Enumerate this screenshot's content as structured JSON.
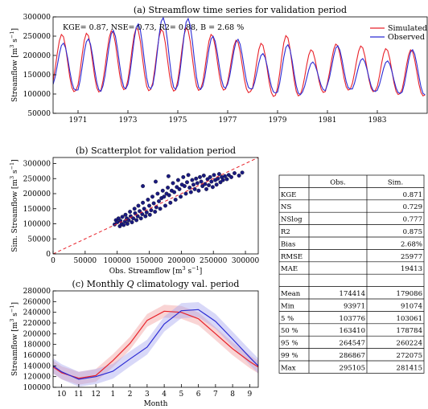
{
  "chart_data": [
    {
      "id": "timeseries",
      "type": "line",
      "title": "(a) Streamflow time series for validation period",
      "xlabel": "",
      "ylabel_base": "Streamflow [m",
      "ylabel_sup1": "3",
      "ylabel_mid": " s",
      "ylabel_sup2": "−1",
      "ylabel_end": "]",
      "xlim": [
        1970.0,
        1985.0
      ],
      "ylim": [
        50000,
        300000
      ],
      "xticks": [
        1971,
        1973,
        1975,
        1977,
        1979,
        1981,
        1983
      ],
      "xtick_labels": [
        "1971",
        "1973",
        "1975",
        "1977",
        "1979",
        "1981",
        "1983"
      ],
      "yticks": [
        50000,
        100000,
        150000,
        200000,
        250000,
        300000
      ],
      "ytick_labels": [
        "50000",
        "100000",
        "150000",
        "200000",
        "250000",
        "300000"
      ],
      "annotation": "KGE= 0.87, NSE= 0.73, R2= 0.88, B = 2.68 %",
      "legend_position": "top-right",
      "series": [
        {
          "name": "Simulated",
          "color": "#e8222a",
          "peaks": [
            255000,
            258000,
            265000,
            272000,
            268000,
            272000,
            255000,
            240000,
            232000,
            252000,
            215000,
            230000,
            225000,
            218000,
            215000
          ],
          "troughs": [
            112000,
            100000,
            110000,
            112000,
            105000,
            110000,
            108000,
            112000,
            95000,
            92000,
            98000,
            110000,
            110000,
            102000,
            95000
          ]
        },
        {
          "name": "Observed",
          "color": "#2b2bd4",
          "peaks": [
            232000,
            243000,
            265000,
            282000,
            298000,
            296000,
            250000,
            242000,
            205000,
            228000,
            183000,
            225000,
            192000,
            186000,
            215000
          ],
          "troughs": [
            118000,
            102000,
            112000,
            115000,
            112000,
            112000,
            112000,
            118000,
            108000,
            97000,
            100000,
            118000,
            108000,
            105000,
            98000
          ]
        }
      ]
    },
    {
      "id": "scatter",
      "type": "scatter",
      "title": "(b) Scatterplot for validation period",
      "xlabel_base": "Obs. Streamflow [m",
      "ylabel_base": "Sim. Streamflow [m",
      "sup1": "3",
      "mid": " s",
      "sup2": "−1",
      "end": "]",
      "xlim": [
        0,
        320000
      ],
      "ylim": [
        0,
        320000
      ],
      "xticks": [
        0,
        50000,
        100000,
        150000,
        200000,
        250000,
        300000
      ],
      "xtick_labels": [
        "0",
        "50000",
        "100000",
        "150000",
        "200000",
        "250000",
        "300000"
      ],
      "yticks": [
        0,
        50000,
        100000,
        150000,
        200000,
        250000,
        300000
      ],
      "ytick_labels": [
        "0",
        "50000",
        "100000",
        "150000",
        "200000",
        "250000",
        "300000"
      ],
      "point_color": "#1a1a80",
      "reference_line_color": "#e8222a",
      "points": [
        [
          96000,
          98000
        ],
        [
          98000,
          112000
        ],
        [
          100000,
          105000
        ],
        [
          102000,
          118000
        ],
        [
          104000,
          92000
        ],
        [
          105000,
          110000
        ],
        [
          107000,
          100000
        ],
        [
          108000,
          123000
        ],
        [
          110000,
          96000
        ],
        [
          112000,
          108000
        ],
        [
          113000,
          130000
        ],
        [
          115000,
          118000
        ],
        [
          116000,
          100000
        ],
        [
          118000,
          112000
        ],
        [
          120000,
          140000
        ],
        [
          121000,
          125000
        ],
        [
          123000,
          105000
        ],
        [
          125000,
          118000
        ],
        [
          127000,
          150000
        ],
        [
          128000,
          135000
        ],
        [
          130000,
          112000
        ],
        [
          132000,
          125000
        ],
        [
          133000,
          160000
        ],
        [
          135000,
          142000
        ],
        [
          137000,
          118000
        ],
        [
          139000,
          132000
        ],
        [
          140000,
          170000
        ],
        [
          142000,
          150000
        ],
        [
          144000,
          125000
        ],
        [
          146000,
          138000
        ],
        [
          148000,
          180000
        ],
        [
          150000,
          160000
        ],
        [
          151000,
          130000
        ],
        [
          153000,
          145000
        ],
        [
          155000,
          190000
        ],
        [
          157000,
          168000
        ],
        [
          159000,
          140000
        ],
        [
          161000,
          155000
        ],
        [
          163000,
          200000
        ],
        [
          165000,
          175000
        ],
        [
          167000,
          150000
        ],
        [
          169000,
          185000
        ],
        [
          171000,
          210000
        ],
        [
          173000,
          190000
        ],
        [
          175000,
          160000
        ],
        [
          177000,
          200000
        ],
        [
          179000,
          220000
        ],
        [
          181000,
          195000
        ],
        [
          183000,
          170000
        ],
        [
          185000,
          210000
        ],
        [
          187000,
          235000
        ],
        [
          189000,
          205000
        ],
        [
          191000,
          180000
        ],
        [
          193000,
          222000
        ],
        [
          195000,
          245000
        ],
        [
          197000,
          215000
        ],
        [
          199000,
          190000
        ],
        [
          201000,
          230000
        ],
        [
          203000,
          255000
        ],
        [
          205000,
          225000
        ],
        [
          207000,
          200000
        ],
        [
          209000,
          238000
        ],
        [
          211000,
          262000
        ],
        [
          213000,
          220000
        ],
        [
          215000,
          205000
        ],
        [
          217000,
          245000
        ],
        [
          219000,
          230000
        ],
        [
          221000,
          215000
        ],
        [
          223000,
          250000
        ],
        [
          225000,
          235000
        ],
        [
          227000,
          210000
        ],
        [
          229000,
          255000
        ],
        [
          231000,
          240000
        ],
        [
          233000,
          225000
        ],
        [
          235000,
          260000
        ],
        [
          237000,
          232000
        ],
        [
          239000,
          215000
        ],
        [
          241000,
          248000
        ],
        [
          243000,
          228000
        ],
        [
          245000,
          255000
        ],
        [
          247000,
          240000
        ],
        [
          249000,
          222000
        ],
        [
          251000,
          262000
        ],
        [
          253000,
          245000
        ],
        [
          255000,
          230000
        ],
        [
          257000,
          250000
        ],
        [
          259000,
          265000
        ],
        [
          261000,
          238000
        ],
        [
          263000,
          255000
        ],
        [
          265000,
          245000
        ],
        [
          268000,
          258000
        ],
        [
          271000,
          248000
        ],
        [
          274000,
          262000
        ],
        [
          278000,
          255000
        ],
        [
          283000,
          268000
        ],
        [
          290000,
          260000
        ],
        [
          295000,
          270000
        ],
        [
          140000,
          225000
        ],
        [
          160000,
          240000
        ],
        [
          180000,
          258000
        ]
      ]
    },
    {
      "id": "climatology",
      "type": "line",
      "title_pre": "(c) Monthly ",
      "title_q": "Q",
      "title_post": " climatology val. period",
      "xlabel": "Month",
      "ylabel_base": "Streamflow [m",
      "sup1": "3",
      "mid": " s",
      "sup2": "−1",
      "end": "]",
      "xlim": [
        0,
        12
      ],
      "ylim": [
        100000,
        280000
      ],
      "xticks": [
        0.5,
        1.5,
        2.5,
        3.5,
        4.5,
        5.5,
        6.5,
        7.5,
        8.5,
        9.5,
        10.5,
        11.5
      ],
      "xtick_labels": [
        "10",
        "11",
        "12",
        "1",
        "2",
        "3",
        "4",
        "5",
        "6",
        "7",
        "8",
        "9"
      ],
      "yticks": [
        100000,
        120000,
        140000,
        160000,
        180000,
        200000,
        220000,
        240000,
        260000,
        280000
      ],
      "ytick_labels": [
        "100000",
        "120000",
        "140000",
        "160000",
        "180000",
        "200000",
        "220000",
        "240000",
        "260000",
        "280000"
      ],
      "x": [
        0,
        0.5,
        1.5,
        2.5,
        3.5,
        4.5,
        5.5,
        6.5,
        7.5,
        8.5,
        9.5,
        10.5,
        11.5,
        12
      ],
      "series": [
        {
          "name": "Simulated",
          "color": "#e8222a",
          "band_color": "#f2a0a0",
          "values": [
            138000,
            127000,
            117000,
            122000,
            150000,
            182000,
            225000,
            242000,
            240000,
            228000,
            200000,
            172000,
            148000,
            138000
          ],
          "band": 12000
        },
        {
          "name": "Observed",
          "color": "#2b2bd4",
          "band_color": "#a8a8f0",
          "values": [
            140000,
            129000,
            115000,
            120000,
            130000,
            153000,
            175000,
            218000,
            243000,
            245000,
            223000,
            190000,
            156000,
            140000
          ],
          "band": 14000
        }
      ]
    },
    {
      "id": "stats_table",
      "type": "table",
      "columns": [
        "",
        "Obs.",
        "Sim."
      ],
      "rows": [
        [
          "KGE",
          "",
          "0.871"
        ],
        [
          "NS",
          "",
          "0.729"
        ],
        [
          "NSlog",
          "",
          "0.777"
        ],
        [
          "R2",
          "",
          "0.875"
        ],
        [
          "Bias",
          "",
          "2.68%"
        ],
        [
          "RMSE",
          "",
          "25977"
        ],
        [
          "MAE",
          "",
          "19413"
        ],
        [
          "",
          "",
          ""
        ],
        [
          "Mean",
          "174414",
          "179086"
        ],
        [
          "Min",
          "93971",
          "91074"
        ],
        [
          "5 %",
          "103776",
          "103061"
        ],
        [
          "50 %",
          "163410",
          "178784"
        ],
        [
          "95 %",
          "264547",
          "260224"
        ],
        [
          "99 %",
          "286867",
          "272075"
        ],
        [
          "Max",
          "295105",
          "281415"
        ]
      ]
    }
  ]
}
